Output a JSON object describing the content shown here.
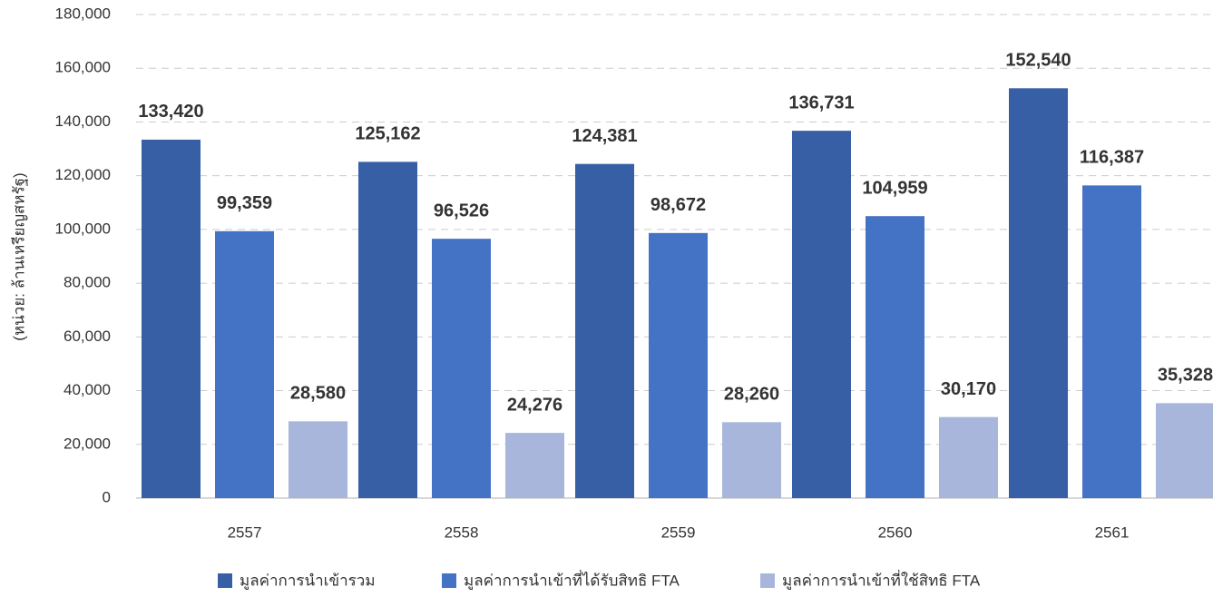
{
  "chart_data": {
    "type": "bar",
    "y_label": "(หน่วย: ล้านเหรียญสหรัฐ)",
    "categories": [
      "2557",
      "2558",
      "2559",
      "2560",
      "2561"
    ],
    "series": [
      {
        "name": "มูลค่าการนำเข้ารวม",
        "color": "#365fa6",
        "values": [
          133420,
          125162,
          124381,
          136731,
          152540
        ],
        "value_labels": [
          "133,420",
          "125,162",
          "124,381",
          "136,731",
          "152,540"
        ]
      },
      {
        "name": "มูลค่าการนำเข้าที่ได้รับสิทธิ FTA",
        "color": "#4472c4",
        "values": [
          99359,
          96526,
          98672,
          104959,
          116387
        ],
        "value_labels": [
          "99,359",
          "96,526",
          "98,672",
          "104,959",
          "116,387"
        ]
      },
      {
        "name": "มูลค่าการนำเข้าที่ใช้สิทธิ FTA",
        "color": "#a9b6dc",
        "values": [
          28580,
          24276,
          28260,
          30170,
          35328
        ],
        "value_labels": [
          "28,580",
          "24,276",
          "28,260",
          "30,170",
          "35,328"
        ]
      }
    ],
    "ylim": [
      0,
      180000
    ],
    "yticks": [
      0,
      {
        "value": 20000,
        "label": "20,000"
      },
      {
        "value": 40000,
        "label": "40,000"
      },
      {
        "value": 60000,
        "label": "60,000"
      },
      {
        "value": 80000,
        "label": "80,000"
      },
      {
        "value": 100000,
        "label": "100,000"
      },
      {
        "value": 120000,
        "label": "120,000"
      },
      {
        "value": 140000,
        "label": "140,000"
      },
      {
        "value": 160000,
        "label": "160,000"
      },
      {
        "value": 180000,
        "label": "180,000"
      }
    ],
    "grid": true,
    "legend": "bottom"
  }
}
